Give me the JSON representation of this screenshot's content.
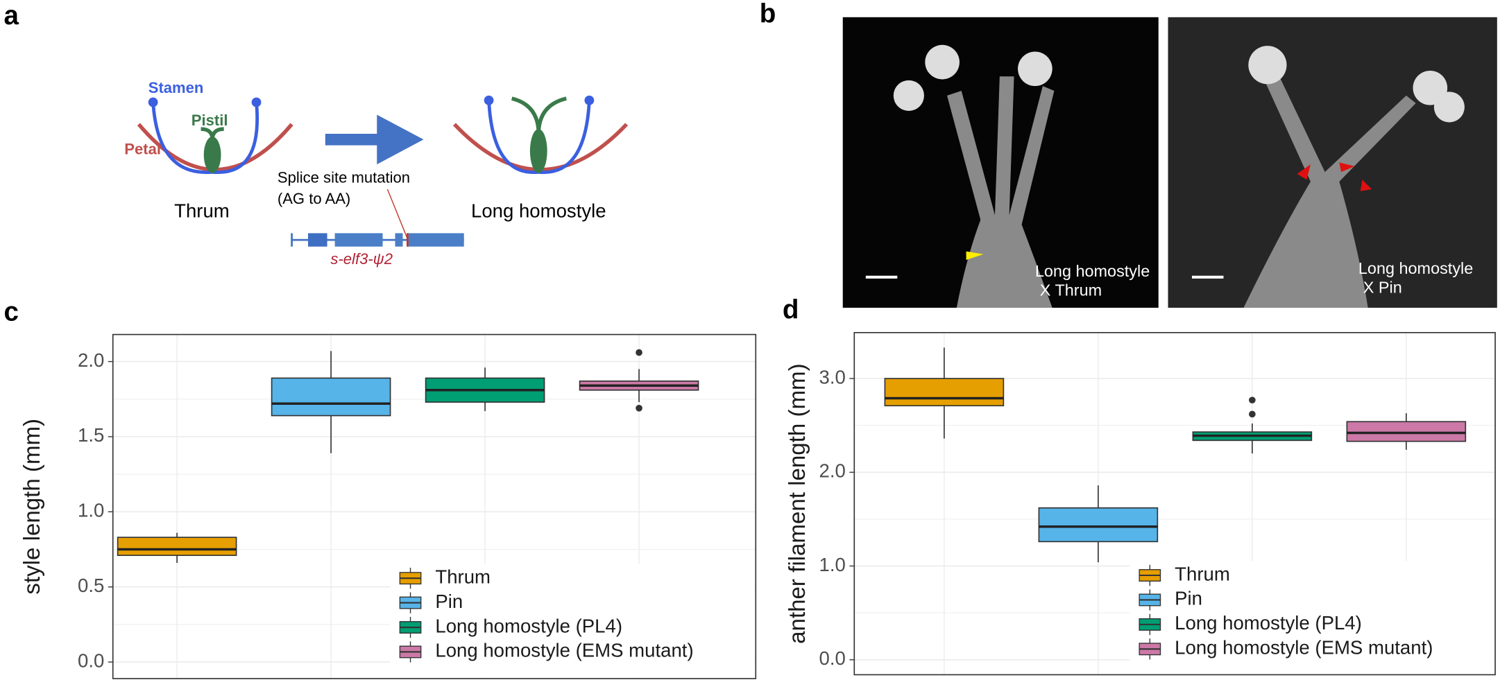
{
  "panels": [
    "a",
    "b",
    "c",
    "d"
  ],
  "diagram": {
    "stamen": "Stamen",
    "pistil": "Pistil",
    "petal": "Petal",
    "left": "Thrum",
    "right": "Long homostyle",
    "mutation_1": "Splice site mutation",
    "mutation_2": "(AG to AA)",
    "gene": "s-elf3-ψ2"
  },
  "photos": [
    {
      "line1": "Long homostyle",
      "line2": "X Thrum"
    },
    {
      "line1": "Long homostyle",
      "line2": "X Pin"
    }
  ],
  "chart_data": [
    {
      "type": "box",
      "ylabel": "style length (mm)",
      "ylim": [
        -0.11,
        2.18
      ],
      "yticks": [
        {
          "value": 0,
          "label": "0.0"
        },
        {
          "value": 0.5,
          "label": "0.5"
        },
        {
          "value": 1,
          "label": "1.0"
        },
        {
          "value": 1.5,
          "label": "1.5"
        },
        {
          "value": 2,
          "label": "2.0"
        }
      ],
      "grid": true,
      "legend": "lower right",
      "series": [
        {
          "name": "Thrum",
          "color": "#E69F00",
          "min": 0.66,
          "q1": 0.71,
          "median": 0.75,
          "q3": 0.83,
          "max": 0.86,
          "outliers": []
        },
        {
          "name": "Pin",
          "color": "#56B4E9",
          "min": 1.39,
          "q1": 1.64,
          "median": 1.72,
          "q3": 1.89,
          "max": 2.07,
          "outliers": []
        },
        {
          "name": "Long homostyle (PL4)",
          "color": "#009E73",
          "min": 1.67,
          "q1": 1.73,
          "median": 1.81,
          "q3": 1.89,
          "max": 1.96,
          "outliers": []
        },
        {
          "name": "Long homostyle (EMS mutant)",
          "color": "#CC79A7",
          "min": 1.73,
          "q1": 1.81,
          "median": 1.84,
          "q3": 1.87,
          "max": 1.95,
          "outliers": [
            2.06,
            1.69
          ]
        }
      ]
    },
    {
      "type": "box",
      "ylabel": "anther filament length (mm)",
      "ylim": [
        -0.16,
        3.49
      ],
      "yticks": [
        {
          "value": 0,
          "label": "0.0"
        },
        {
          "value": 1,
          "label": "1.0"
        },
        {
          "value": 2,
          "label": "2.0"
        },
        {
          "value": 3,
          "label": "3.0"
        }
      ],
      "grid": true,
      "legend": "lower right",
      "series": [
        {
          "name": "Thrum",
          "color": "#E69F00",
          "min": 2.36,
          "q1": 2.71,
          "median": 2.79,
          "q3": 3.0,
          "max": 3.33,
          "outliers": []
        },
        {
          "name": "Pin",
          "color": "#56B4E9",
          "min": 1.04,
          "q1": 1.26,
          "median": 1.42,
          "q3": 1.62,
          "max": 1.86,
          "outliers": []
        },
        {
          "name": "Long homostyle (PL4)",
          "color": "#009E73",
          "min": 2.2,
          "q1": 2.34,
          "median": 2.39,
          "q3": 2.43,
          "max": 2.52,
          "outliers": [
            2.77,
            2.62
          ]
        },
        {
          "name": "Long homostyle (EMS mutant)",
          "color": "#CC79A7",
          "min": 2.24,
          "q1": 2.33,
          "median": 2.42,
          "q3": 2.54,
          "max": 2.63,
          "outliers": []
        }
      ]
    }
  ]
}
